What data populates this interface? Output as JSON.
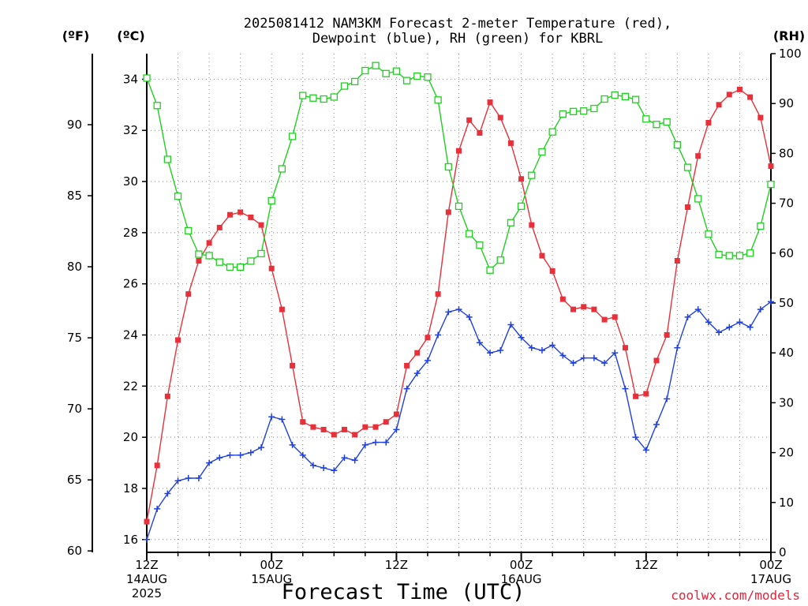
{
  "chart_data": {
    "type": "line",
    "title_line1": "2025081412 NAM3KM Forecast 2-meter Temperature (red),",
    "title_line2": "Dewpoint (blue), RH (green) for KBRL",
    "xlabel": "Forecast Time (UTC)",
    "credit": "coolwx.com/models",
    "unit_f": "(ºF)",
    "unit_c": "(ºC)",
    "unit_rh": "(RH)",
    "forecast_hours": [
      0,
      60
    ],
    "celsius_axis": {
      "range": [
        15.5,
        35
      ],
      "ticks": [
        16,
        18,
        20,
        22,
        24,
        26,
        28,
        30,
        32,
        34
      ]
    },
    "fahrenheit_axis": {
      "ticks": [
        60,
        65,
        70,
        75,
        80,
        85,
        90
      ]
    },
    "rh_axis": {
      "range": [
        0,
        100
      ],
      "ticks": [
        0,
        10,
        20,
        30,
        40,
        50,
        60,
        70,
        80,
        90,
        100
      ]
    },
    "x_ticks": [
      {
        "hour": 0,
        "line1": "12Z",
        "line2": "14AUG",
        "line3": "2025"
      },
      {
        "hour": 12,
        "line1": "00Z",
        "line2": "15AUG",
        "line3": ""
      },
      {
        "hour": 24,
        "line1": "12Z",
        "line2": "",
        "line3": ""
      },
      {
        "hour": 36,
        "line1": "00Z",
        "line2": "16AUG",
        "line3": ""
      },
      {
        "hour": 48,
        "line1": "12Z",
        "line2": "",
        "line3": ""
      },
      {
        "hour": 60,
        "line1": "00Z",
        "line2": "17AUG",
        "line3": ""
      }
    ],
    "grid": true,
    "colors": {
      "temperature": "#e8303a",
      "dewpoint": "#2040e0",
      "rh": "#20d020",
      "axis": "#000000"
    },
    "series": [
      {
        "key": "temperature",
        "axis": "celsius",
        "marker": "filled-square",
        "values": [
          16.7,
          18.9,
          21.6,
          23.8,
          25.6,
          26.9,
          27.6,
          28.2,
          28.7,
          28.8,
          28.6,
          28.3,
          26.6,
          25.0,
          22.8,
          20.6,
          20.4,
          20.3,
          20.1,
          20.3,
          20.1,
          20.4,
          20.4,
          20.6,
          20.9,
          22.8,
          23.3,
          23.9,
          25.6,
          28.8,
          31.2,
          32.4,
          31.9,
          33.1,
          32.5,
          31.5,
          30.1,
          28.3,
          27.1,
          26.5,
          25.4,
          25.0,
          25.1,
          25.0,
          24.6,
          24.7,
          23.5,
          21.6,
          21.7,
          23.0,
          24.0,
          26.9,
          29.0,
          31.0,
          32.3,
          33.0,
          33.4,
          33.6,
          33.3,
          32.5,
          30.6
        ]
      },
      {
        "key": "dewpoint",
        "axis": "celsius",
        "marker": "plus",
        "values": [
          16.0,
          17.2,
          17.8,
          18.3,
          18.4,
          18.4,
          19.0,
          19.2,
          19.3,
          19.3,
          19.4,
          19.6,
          20.8,
          20.7,
          19.7,
          19.3,
          18.9,
          18.8,
          18.7,
          19.2,
          19.1,
          19.7,
          19.8,
          19.8,
          20.3,
          21.9,
          22.5,
          23.0,
          24.0,
          24.9,
          25.0,
          24.7,
          23.7,
          23.3,
          23.4,
          24.4,
          23.9,
          23.5,
          23.4,
          23.6,
          23.2,
          22.9,
          23.1,
          23.1,
          22.9,
          23.3,
          21.9,
          20.0,
          19.5,
          20.5,
          21.5,
          23.5,
          24.7,
          25.0,
          24.5,
          24.1,
          24.3,
          24.5,
          24.3,
          25.0,
          25.3
        ]
      },
      {
        "key": "rh",
        "axis": "rh",
        "marker": "open-square",
        "values": [
          95.1,
          89.6,
          78.8,
          71.4,
          64.5,
          59.8,
          59.5,
          58.2,
          57.2,
          57.2,
          58.4,
          59.9,
          70.5,
          76.9,
          83.4,
          91.6,
          91.1,
          90.9,
          91.3,
          93.5,
          94.4,
          96.6,
          97.6,
          96.0,
          96.5,
          94.6,
          95.5,
          95.3,
          90.7,
          77.3,
          69.4,
          63.9,
          61.6,
          56.6,
          58.6,
          66.1,
          69.4,
          75.6,
          80.3,
          84.3,
          87.9,
          88.4,
          88.5,
          89.0,
          90.9,
          91.7,
          91.4,
          90.8,
          86.9,
          85.8,
          86.3,
          81.7,
          77.2,
          70.9,
          63.8,
          59.7,
          59.5,
          59.5,
          60.0,
          65.4,
          73.8
        ]
      }
    ]
  }
}
